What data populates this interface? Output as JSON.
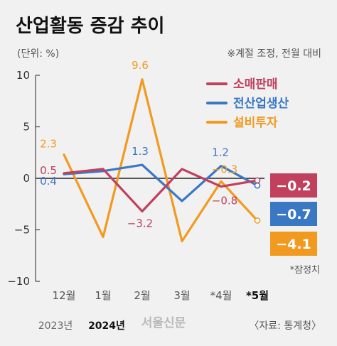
{
  "header": {
    "title": "산업활동 증감 추이",
    "unit": "(단위: %)",
    "note": "※계절 조정, 전월 대비"
  },
  "footer": {
    "year_2023": "2023년",
    "year_2024": "2024년",
    "watermark": "서울신문",
    "source": "〈자료: 통계청〉",
    "preliminary_note": "*잠정치"
  },
  "colors": {
    "retail": "#c0405e",
    "industrial": "#3a78c3",
    "investment": "#f29a1f"
  },
  "chart_data": {
    "type": "line",
    "categories": [
      "12월",
      "1월",
      "2월",
      "3월",
      "*4월",
      "*5월"
    ],
    "ylim": [
      -10,
      10
    ],
    "yticks": [
      10,
      5,
      0,
      -5,
      -10
    ],
    "legend_position": "top-right",
    "grid": false,
    "series": [
      {
        "name": "소매판매",
        "values": [
          0.5,
          0.9,
          -3.2,
          0.9,
          -0.8,
          -0.2
        ],
        "color": "#c0405e"
      },
      {
        "name": "전산업생산",
        "values": [
          0.4,
          0.7,
          1.3,
          -2.2,
          1.2,
          -0.7
        ],
        "color": "#3a78c3"
      },
      {
        "name": "설비투자",
        "values": [
          2.3,
          -5.7,
          9.6,
          -6.1,
          -0.3,
          -4.1
        ],
        "color": "#f29a1f"
      }
    ],
    "data_labels": [
      {
        "series": 2,
        "index": 0,
        "text": "2.3"
      },
      {
        "series": 0,
        "index": 0,
        "text": "0.5"
      },
      {
        "series": 1,
        "index": 0,
        "text": "0.4"
      },
      {
        "series": 2,
        "index": 2,
        "text": "9.6"
      },
      {
        "series": 1,
        "index": 2,
        "text": "1.3"
      },
      {
        "series": 0,
        "index": 2,
        "text": "−3.2"
      },
      {
        "series": 1,
        "index": 4,
        "text": "1.2"
      },
      {
        "series": 2,
        "index": 4,
        "text": "−0.3"
      },
      {
        "series": 0,
        "index": 4,
        "text": "−0.8"
      }
    ],
    "end_labels": [
      {
        "series": 0,
        "text": "−0.2"
      },
      {
        "series": 1,
        "text": "−0.7"
      },
      {
        "series": 2,
        "text": "−4.1"
      }
    ]
  }
}
